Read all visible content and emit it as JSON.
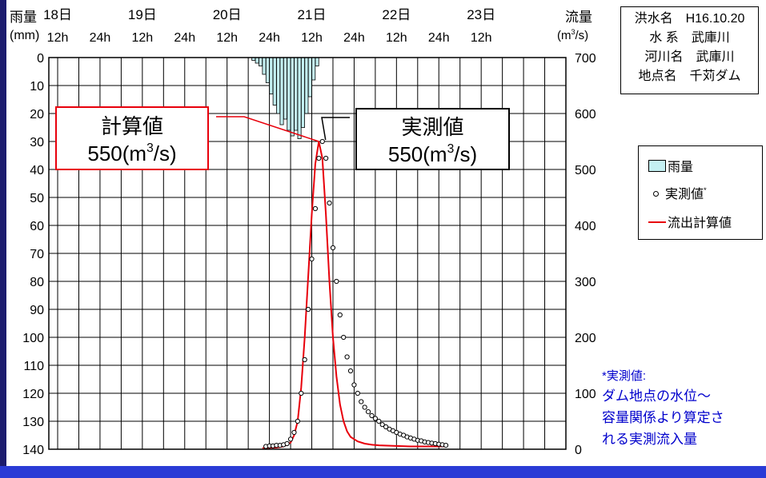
{
  "header": {
    "left_axis_title": "雨量",
    "left_axis_unit": "(mm)",
    "right_axis_title": "流量",
    "right_axis_unit_base": "(m",
    "right_axis_unit_sup": "3",
    "right_axis_unit_tail": "/s)"
  },
  "info_box": {
    "lines": [
      "洪水名　H16.10.20",
      "水 系　武庫川",
      "河川名　武庫川",
      "地点名　千苅ダム"
    ]
  },
  "callout_calc": {
    "title": "計算値",
    "value_base": "550(m",
    "value_sup": "3",
    "value_tail": "/s)"
  },
  "callout_obs": {
    "title": "実測値",
    "value_base": "550(m",
    "value_sup": "3",
    "value_tail": "/s)"
  },
  "legend": {
    "rain": "雨量",
    "observed": "実測値",
    "observed_mark": "*",
    "calc": "流出計算値"
  },
  "note": {
    "line1": "*実測値:",
    "line2": "ダム地点の水位～",
    "line3": "容量関係より算定さ",
    "line4": "れる実測流入量"
  },
  "colors": {
    "calc_line": "#e8000b",
    "rain_fill": "#c4f0f2",
    "note_text": "#0000cc",
    "left_bar": "#1c1c6e",
    "bottom_bar": "#2a3bd6"
  },
  "chart_data": {
    "type": "line",
    "x_unit": "hours from 18日 0h",
    "x_range": [
      -2.5,
      144
    ],
    "day_labels": [
      {
        "label": "18日",
        "hour": 0
      },
      {
        "label": "19日",
        "hour": 24
      },
      {
        "label": "20日",
        "hour": 48
      },
      {
        "label": "21日",
        "hour": 72
      },
      {
        "label": "22日",
        "hour": 96
      },
      {
        "label": "23日",
        "hour": 120
      }
    ],
    "hour_labels": [
      {
        "label": "12h",
        "hour": 0
      },
      {
        "label": "24h",
        "hour": 12
      },
      {
        "label": "12h",
        "hour": 24
      },
      {
        "label": "24h",
        "hour": 36
      },
      {
        "label": "12h",
        "hour": 48
      },
      {
        "label": "24h",
        "hour": 60
      },
      {
        "label": "12h",
        "hour": 72
      },
      {
        "label": "24h",
        "hour": 84
      },
      {
        "label": "12h",
        "hour": 96
      },
      {
        "label": "24h",
        "hour": 108
      },
      {
        "label": "12h",
        "hour": 120
      }
    ],
    "rain_axis": {
      "range": [
        0,
        140
      ],
      "inverted": true,
      "ticks": [
        0,
        10,
        20,
        30,
        40,
        50,
        60,
        70,
        80,
        90,
        100,
        110,
        120,
        130,
        140
      ]
    },
    "flow_axis": {
      "range": [
        0,
        700
      ],
      "ticks": [
        0,
        100,
        200,
        300,
        400,
        500,
        600,
        700
      ]
    },
    "grid": true,
    "legend_position": "right",
    "series": [
      {
        "name": "雨量",
        "kind": "bar",
        "axis": "rain",
        "x": [
          55.5,
          56.5,
          57.5,
          58.5,
          59.5,
          60.5,
          61.5,
          62.5,
          63.5,
          64.5,
          65.5,
          66.5,
          67.5,
          68.5,
          69.5,
          70.5,
          71.5,
          72.5,
          73.5
        ],
        "values": [
          1,
          2,
          3,
          6,
          9,
          13,
          17,
          20,
          24,
          22,
          26,
          28,
          26,
          29,
          25,
          20,
          14,
          8,
          3
        ]
      },
      {
        "name": "実測値",
        "kind": "scatter",
        "axis": "flow",
        "x": [
          59,
          60,
          61,
          62,
          63,
          64,
          65,
          66,
          67,
          68,
          69,
          70,
          71,
          72,
          73,
          74,
          75,
          76,
          77,
          78,
          79,
          80,
          81,
          82,
          83,
          84,
          85,
          86,
          87,
          88,
          89,
          90,
          91,
          92,
          93,
          94,
          95,
          96,
          97,
          98,
          99,
          100,
          101,
          102,
          103,
          104,
          105,
          106,
          107,
          108,
          109,
          110
        ],
        "values": [
          5,
          6,
          6,
          7,
          7,
          8,
          10,
          18,
          30,
          50,
          100,
          160,
          250,
          340,
          430,
          520,
          550,
          520,
          440,
          360,
          300,
          240,
          200,
          165,
          140,
          115,
          100,
          85,
          75,
          67,
          60,
          55,
          50,
          44,
          40,
          36,
          33,
          30,
          27,
          25,
          22,
          20,
          18,
          16,
          15,
          13,
          12,
          11,
          10,
          9,
          8,
          7
        ]
      },
      {
        "name": "流出計算値",
        "kind": "line",
        "axis": "flow",
        "x": [
          58,
          62,
          64,
          66,
          67,
          68,
          69,
          70,
          71,
          72,
          73,
          74,
          75,
          76,
          77,
          78,
          79,
          80,
          81,
          82,
          83,
          85,
          87,
          89,
          91,
          95,
          100,
          110
        ],
        "values": [
          2,
          3,
          5,
          12,
          25,
          50,
          110,
          200,
          310,
          420,
          510,
          550,
          520,
          420,
          300,
          200,
          130,
          80,
          50,
          32,
          22,
          14,
          10,
          8,
          7,
          6,
          5,
          5
        ]
      }
    ]
  }
}
